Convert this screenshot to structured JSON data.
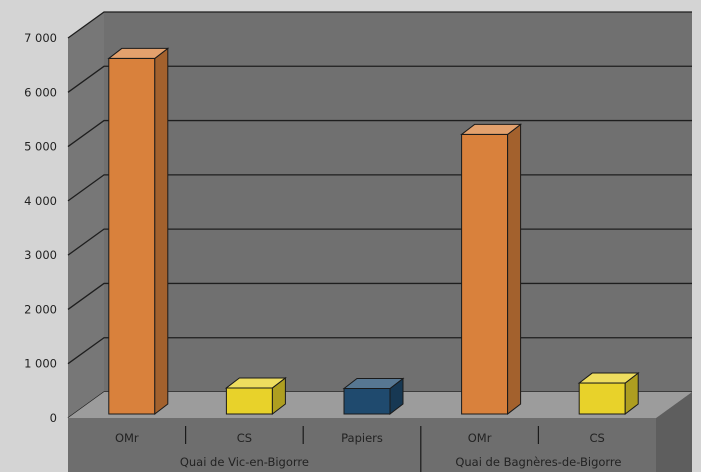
{
  "chart_data": {
    "type": "bar",
    "title": "",
    "xlabel": "",
    "ylabel": "",
    "ylim": [
      0,
      7000
    ],
    "yticks": [
      0,
      1000,
      2000,
      3000,
      4000,
      5000,
      6000,
      7000
    ],
    "ytick_labels": [
      "0",
      "1 000",
      "2 000",
      "3 000",
      "4 000",
      "5 000",
      "6 000",
      "7 000"
    ],
    "grid": true,
    "legend": "none",
    "groups": [
      {
        "label": "Quai de Vic-en-Bigorre",
        "bars": [
          {
            "category": "OMr",
            "value": 6550,
            "color": "#d9813c"
          },
          {
            "category": "CS",
            "value": 480,
            "color": "#e8d22a"
          },
          {
            "category": "Papiers",
            "value": 470,
            "color": "#1f4a6e"
          }
        ]
      },
      {
        "label": "Quai de Bagnères-de-Bigorre",
        "bars": [
          {
            "category": "OMr",
            "value": 5150,
            "color": "#d9813c"
          },
          {
            "category": "CS",
            "value": 570,
            "color": "#e8d22a"
          }
        ]
      }
    ]
  },
  "colors": {
    "page_background": "#d4d4d4",
    "wall": "#707070",
    "wall_side": "#777777",
    "floor": "#9c9c9c",
    "floor_front": "#6e6e6e",
    "gridline": "#1e1e1e",
    "text": "#222222"
  }
}
